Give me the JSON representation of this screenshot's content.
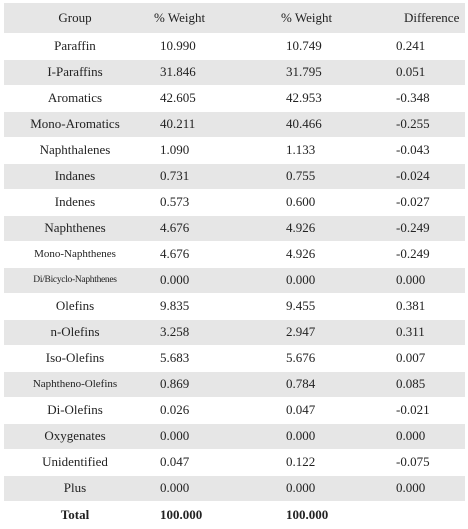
{
  "headers": {
    "group": "Group",
    "weight1": "% Weight",
    "weight2": "% Weight",
    "difference": "Difference"
  },
  "rows": [
    {
      "group": "Paraffin",
      "w1": "10.990",
      "w2": "10.749",
      "diff": "0.241"
    },
    {
      "group": "I-Paraffins",
      "w1": "31.846",
      "w2": "31.795",
      "diff": "0.051"
    },
    {
      "group": "Aromatics",
      "w1": "42.605",
      "w2": "42.953",
      "diff": "-0.348"
    },
    {
      "group": "Mono-Aromatics",
      "w1": "40.211",
      "w2": "40.466",
      "diff": "-0.255"
    },
    {
      "group": "Naphthalenes",
      "w1": "1.090",
      "w2": "1.133",
      "diff": "-0.043"
    },
    {
      "group": "Indanes",
      "w1": "0.731",
      "w2": "0.755",
      "diff": "-0.024"
    },
    {
      "group": "Indenes",
      "w1": "0.573",
      "w2": "0.600",
      "diff": "-0.027"
    },
    {
      "group": "Naphthenes",
      "w1": "4.676",
      "w2": "4.926",
      "diff": "-0.249"
    },
    {
      "group": "Mono-Naphthenes",
      "w1": "4.676",
      "w2": "4.926",
      "diff": "-0.249"
    },
    {
      "group": "Di/Bicyclo-Naphthenes",
      "w1": "0.000",
      "w2": "0.000",
      "diff": "0.000"
    },
    {
      "group": "Olefins",
      "w1": "9.835",
      "w2": "9.455",
      "diff": "0.381"
    },
    {
      "group": "n-Olefins",
      "w1": "3.258",
      "w2": "2.947",
      "diff": "0.311"
    },
    {
      "group": "Iso-Olefins",
      "w1": "5.683",
      "w2": "5.676",
      "diff": "0.007"
    },
    {
      "group": "Naphtheno-Olefins",
      "w1": "0.869",
      "w2": "0.784",
      "diff": "0.085"
    },
    {
      "group": "Di-Olefins",
      "w1": "0.026",
      "w2": "0.047",
      "diff": "-0.021"
    },
    {
      "group": "Oxygenates",
      "w1": "0.000",
      "w2": "0.000",
      "diff": "0.000"
    },
    {
      "group": "Unidentified",
      "w1": "0.047",
      "w2": "0.122",
      "diff": "-0.075"
    },
    {
      "group": "Plus",
      "w1": "0.000",
      "w2": "0.000",
      "diff": "0.000"
    }
  ],
  "total": {
    "group": "Total",
    "w1": "100.000",
    "w2": "100.000",
    "diff": ""
  }
}
